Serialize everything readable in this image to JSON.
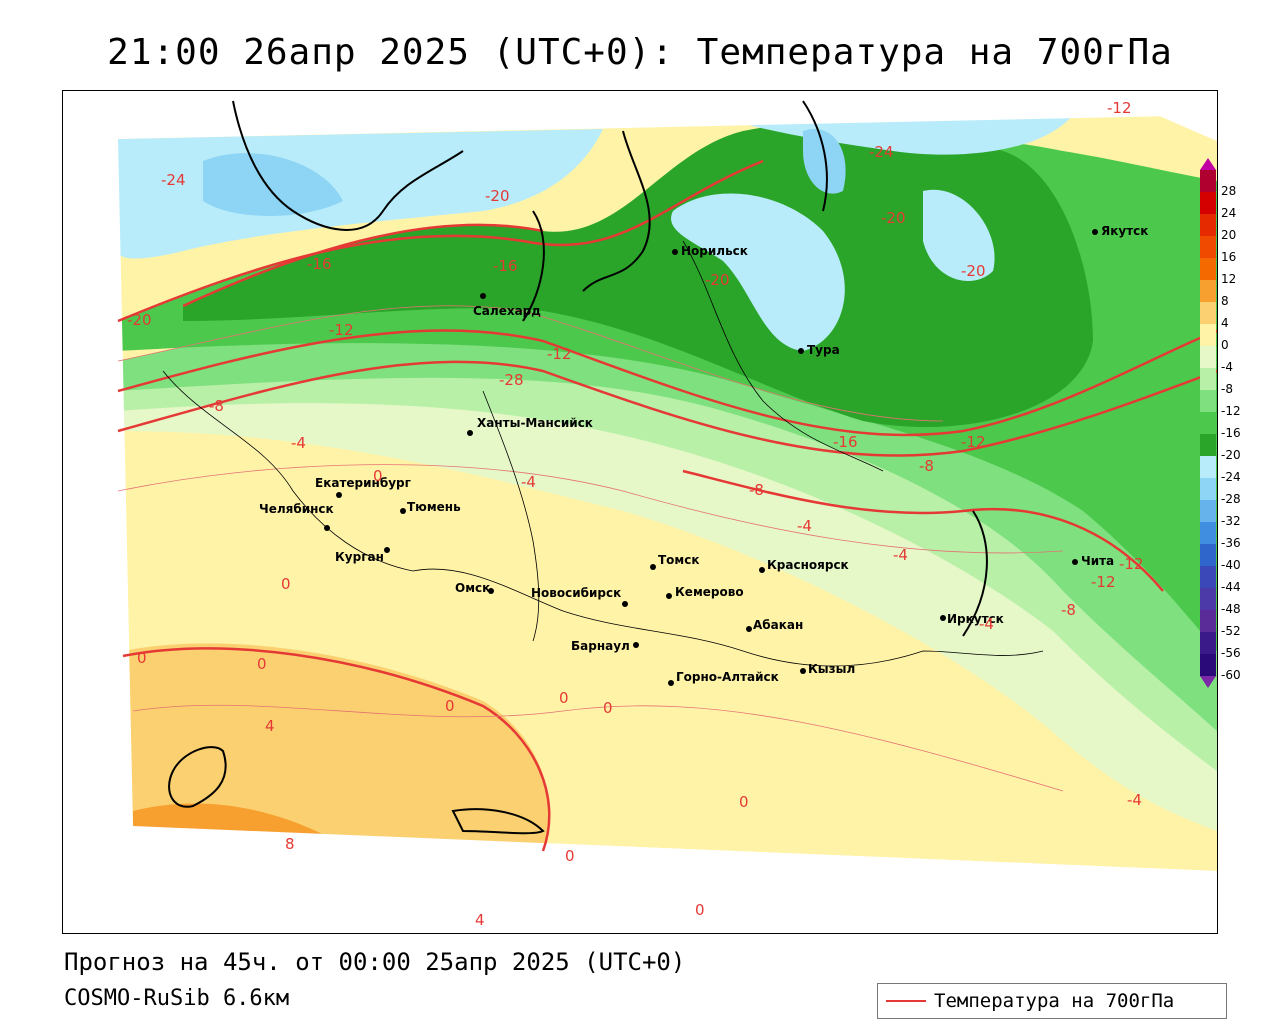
{
  "title": "21:00 26апр 2025 (UTC+0): Температура на 700гПа",
  "forecast_line": "Прогноз на 45ч. от 00:00 25апр 2025 (UTC+0)",
  "model_line": "COSMO-RuSib 6.6км",
  "legend": {
    "label": "Температура на 700гПа",
    "line_color": "#e53935"
  },
  "colorbar": {
    "labels": [
      "28",
      "24",
      "20",
      "16",
      "12",
      "8",
      "4",
      "0",
      "-4",
      "-8",
      "-12",
      "-16",
      "-20",
      "-24",
      "-28",
      "-32",
      "-36",
      "-40",
      "-44",
      "-48",
      "-52",
      "-56",
      "-60"
    ],
    "colors": [
      "#b00030",
      "#d40000",
      "#e62a00",
      "#f04a00",
      "#f56a00",
      "#f7a030",
      "#fbd070",
      "#fff3a8",
      "#e6f7c8",
      "#b8f0a8",
      "#7fe07f",
      "#4cc94c",
      "#2aa52a",
      "#b8ecfa",
      "#8ed4f4",
      "#66b2ea",
      "#3f8ee0",
      "#2f66cc",
      "#3a48b8",
      "#4b3aa8",
      "#5a2c98",
      "#3a1a88",
      "#2a0a78"
    ]
  },
  "cities": [
    {
      "name": "Норильск"
    },
    {
      "name": "Якутск"
    },
    {
      "name": "Салехард"
    },
    {
      "name": "Тура"
    },
    {
      "name": "Ханты-Мансийск"
    },
    {
      "name": "Екатеринбург"
    },
    {
      "name": "Тюмень"
    },
    {
      "name": "Челябинск"
    },
    {
      "name": "Курган"
    },
    {
      "name": "Омск"
    },
    {
      "name": "Новосибирск"
    },
    {
      "name": "Томск"
    },
    {
      "name": "Кемерово"
    },
    {
      "name": "Красноярск"
    },
    {
      "name": "Барнаул"
    },
    {
      "name": "Абакан"
    },
    {
      "name": "Горно-Алтайск"
    },
    {
      "name": "Кызыл"
    },
    {
      "name": "Иркутск"
    },
    {
      "name": "Чита"
    }
  ],
  "isolines": [
    "-24",
    "-20",
    "-16",
    "-20",
    "-20",
    "-20",
    "-24",
    "-12",
    "-16",
    "-12",
    "-12",
    "-20",
    "-28",
    "-8",
    "-16",
    "-4",
    "-12",
    "-8",
    "-4",
    "-8",
    "-4",
    "-4",
    "-12",
    "-12",
    "-8",
    "0",
    "0",
    "0",
    "4",
    "0",
    "0",
    "0",
    "0",
    "4",
    "8",
    "0",
    "0",
    "-4",
    "-4",
    "0"
  ]
}
